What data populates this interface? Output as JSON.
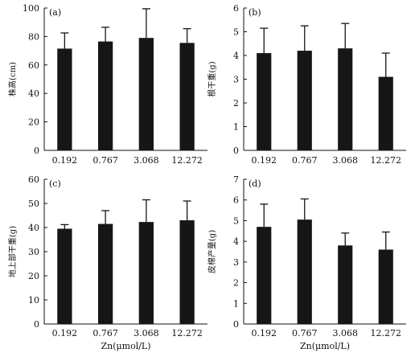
{
  "figure": {
    "accent_color": "#161616",
    "shared_xlabel": "Zn(μmol/L)"
  },
  "chart_data": [
    {
      "type": "bar",
      "panel": "(a)",
      "categories": [
        "0.192",
        "0.767",
        "3.068",
        "12.272"
      ],
      "values": [
        71.5,
        76.5,
        79.0,
        75.5
      ],
      "errors": [
        11.0,
        10.0,
        20.5,
        10.0
      ],
      "ylabel": "株高(cm)",
      "xlabel": "",
      "ylim": [
        0,
        100
      ],
      "yticks": [
        0,
        20,
        40,
        60,
        80,
        100
      ],
      "grid": false
    },
    {
      "type": "bar",
      "panel": "(b)",
      "categories": [
        "0.192",
        "0.767",
        "3.068",
        "12.272"
      ],
      "values": [
        4.1,
        4.2,
        4.3,
        3.1
      ],
      "errors": [
        1.05,
        1.05,
        1.05,
        1.0
      ],
      "ylabel": "根干重(g)",
      "xlabel": "",
      "ylim": [
        0,
        6
      ],
      "yticks": [
        0,
        1,
        2,
        3,
        4,
        5,
        6
      ],
      "grid": false
    },
    {
      "type": "bar",
      "panel": "(c)",
      "categories": [
        "0.192",
        "0.767",
        "3.068",
        "12.272"
      ],
      "values": [
        39.5,
        41.5,
        42.3,
        43.0
      ],
      "errors": [
        1.7,
        5.5,
        9.2,
        8.0
      ],
      "ylabel": "地上部干重(g)",
      "xlabel": "Zn(μmol/L)",
      "ylim": [
        0,
        60
      ],
      "yticks": [
        0,
        10,
        20,
        30,
        40,
        50,
        60
      ],
      "grid": false
    },
    {
      "type": "bar",
      "panel": "(d)",
      "categories": [
        "0.192",
        "0.767",
        "3.068",
        "12.272"
      ],
      "values": [
        4.7,
        5.05,
        3.8,
        3.6
      ],
      "errors": [
        1.1,
        1.0,
        0.6,
        0.85
      ],
      "ylabel": "皮棉产量(g)",
      "xlabel": "Zn(μmol/L)",
      "ylim": [
        0,
        7
      ],
      "yticks": [
        0,
        1,
        2,
        3,
        4,
        5,
        6,
        7
      ],
      "grid": false
    }
  ]
}
